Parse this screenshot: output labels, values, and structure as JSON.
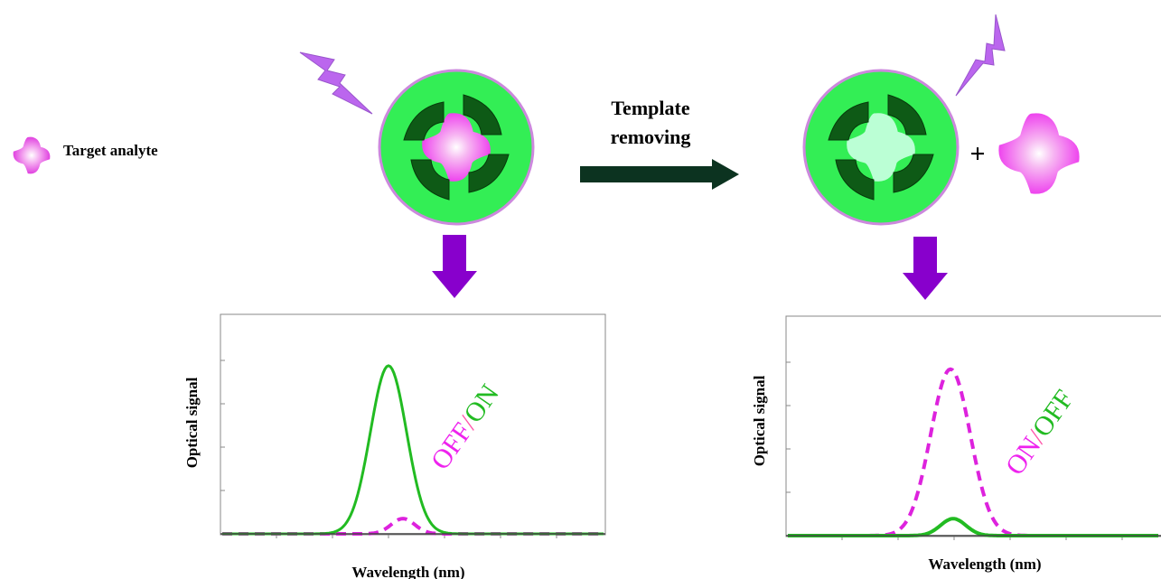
{
  "legend": {
    "label": "Target analyte"
  },
  "step": {
    "line1": "Template",
    "line2": "removing"
  },
  "plus": "+",
  "panels": [
    {
      "ylabel": "Optical signal",
      "xlabel": "Wavelength (nm)",
      "state_word_a": "OFF",
      "state_sep": "/",
      "state_word_b": "ON",
      "state_word_a_color": "#ee22ee",
      "state_word_b_color": "#22bb22",
      "solid_curve": {
        "color": "#22bb22",
        "style": "solid",
        "peak_level": 0.99
      },
      "dashed_curve": {
        "color": "#dd22dd",
        "style": "dashed",
        "peak_level": 0.09
      }
    },
    {
      "ylabel": "Optical signal",
      "xlabel": "Wavelength (nm)",
      "state_word_a": "ON",
      "state_sep": "/",
      "state_word_b": "OFF",
      "state_word_a_color": "#ee22ee",
      "state_word_b_color": "#22bb22",
      "solid_curve": {
        "color": "#22bb22",
        "style": "solid",
        "peak_level": 0.1
      },
      "dashed_curve": {
        "color": "#dd22dd",
        "style": "dashed",
        "peak_level": 0.98
      }
    }
  ],
  "colors": {
    "particle_fill": "#33ee55",
    "particle_rim": "#cc88dd",
    "cavity_dark": "#0e5a16",
    "analyte_core": "#ee44ee",
    "cavity_empty": "#bbffd5",
    "flash": "#bb66ee",
    "down_arrow": "#8800cc",
    "step_arrow": "#0c3320"
  }
}
